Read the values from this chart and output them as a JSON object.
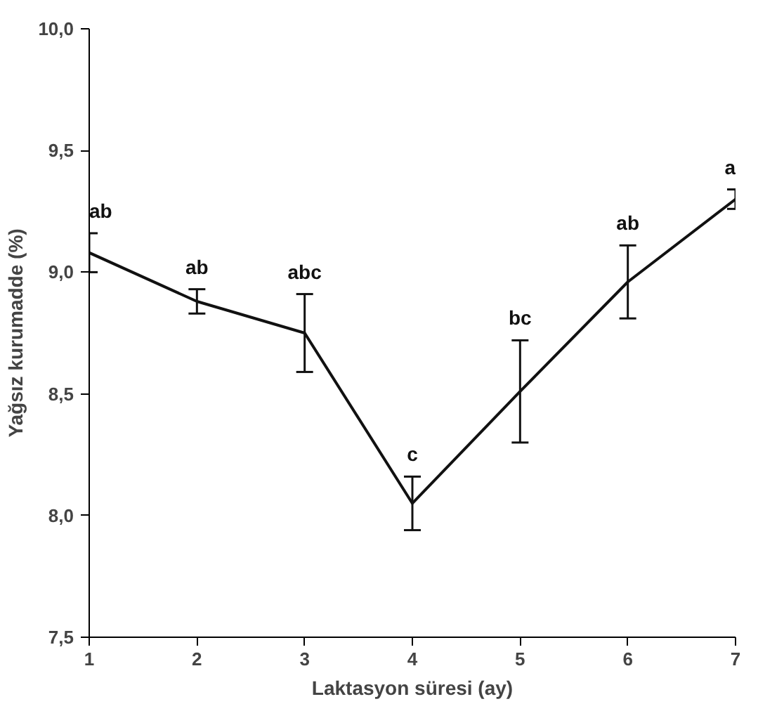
{
  "chart_data": {
    "type": "line",
    "xlabel": "Laktasyon süresi (ay)",
    "ylabel": "Yağsız kurumadde (%)",
    "x": [
      1,
      2,
      3,
      4,
      5,
      6,
      7
    ],
    "series": [
      {
        "color": "#111111",
        "values": [
          9.08,
          8.88,
          8.75,
          8.05,
          8.51,
          8.96,
          9.3
        ],
        "errors": [
          0.08,
          0.05,
          0.16,
          0.11,
          0.21,
          0.15,
          0.04
        ],
        "value_labels": [
          "ab",
          "ab",
          "abc",
          "c",
          "bc",
          "ab",
          "a"
        ]
      }
    ],
    "xlim": [
      1,
      7
    ],
    "ylim": [
      7.5,
      10.0
    ],
    "xticks": [
      1,
      2,
      3,
      4,
      5,
      6,
      7
    ],
    "yticks": [
      {
        "value": 7.5,
        "label": "7,5"
      },
      {
        "value": 8.0,
        "label": "8,0"
      },
      {
        "value": 8.5,
        "label": "8,5"
      },
      {
        "value": 9.0,
        "label": "9,0"
      },
      {
        "value": 9.5,
        "label": "9,5"
      },
      {
        "value": 10.0,
        "label": "10,0"
      }
    ],
    "grid": false,
    "marker": "none",
    "line_style": "solid"
  }
}
